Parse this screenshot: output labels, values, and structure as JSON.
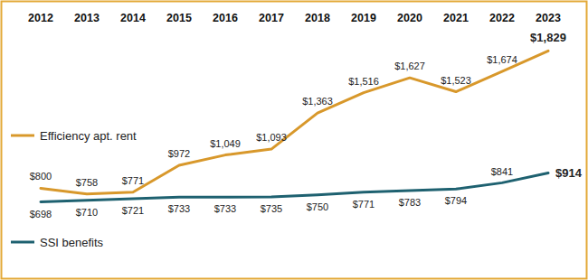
{
  "chart_data": {
    "type": "line",
    "categories": [
      "2012",
      "2013",
      "2014",
      "2015",
      "2016",
      "2017",
      "2018",
      "2019",
      "2020",
      "2021",
      "2022",
      "2023"
    ],
    "series": [
      {
        "name": "Efficiency apt. rent",
        "color": "#d8982b",
        "values": [
          800,
          758,
          771,
          972,
          1049,
          1093,
          1363,
          1516,
          1627,
          1523,
          1674,
          1829
        ],
        "value_labels": [
          "$800",
          "$758",
          "$771",
          "$972",
          "$1,049",
          "$1,093",
          "$1,363",
          "$1,516",
          "$1,627",
          "$1,523",
          "$1,674",
          "$1,829"
        ]
      },
      {
        "name": "SSI benefits",
        "color": "#1e6170",
        "values": [
          698,
          710,
          721,
          733,
          733,
          735,
          750,
          771,
          783,
          794,
          841,
          914
        ],
        "value_labels": [
          "$698",
          "$710",
          "$721",
          "$733",
          "$733",
          "$735",
          "$750",
          "$771",
          "$783",
          "$794",
          "$841",
          "$914"
        ]
      }
    ],
    "ylim": [
      600,
      2000
    ],
    "tick_labels": "x",
    "data_labels": true,
    "legend": "left",
    "grid": false
  }
}
